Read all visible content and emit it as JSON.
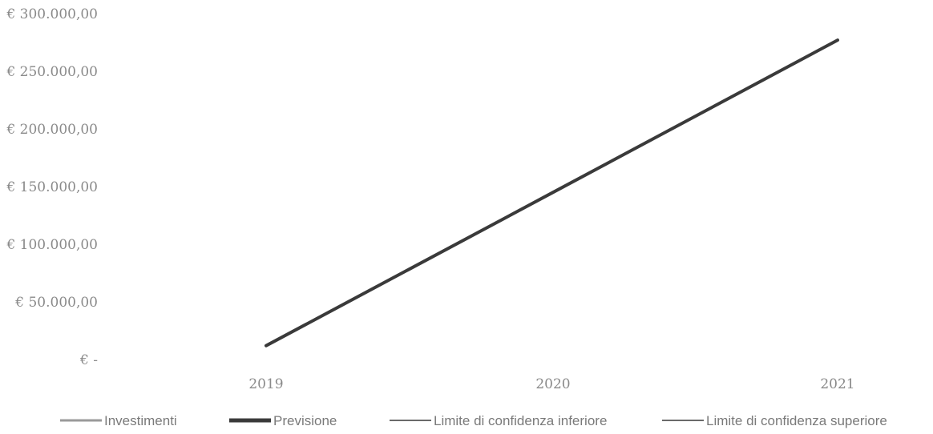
{
  "chart_data": {
    "type": "line",
    "x": [
      "2019",
      "2020",
      "2021"
    ],
    "ylim": [
      0,
      300000
    ],
    "y_ticks": [
      {
        "value": 0,
        "label": "€ -"
      },
      {
        "value": 50000,
        "label": "€ 50.000,00"
      },
      {
        "value": 100000,
        "label": "€ 100.000,00"
      },
      {
        "value": 150000,
        "label": "€ 150.000,00"
      },
      {
        "value": 200000,
        "label": "€ 200.000,00"
      },
      {
        "value": 250000,
        "label": "€ 250.000,00"
      },
      {
        "value": 300000,
        "label": "€ 300.000,00"
      }
    ],
    "grid": false,
    "legend_position": "bottom",
    "series": [
      {
        "name": "Investimenti",
        "color": "#9a9a9a",
        "values": [
          12000,
          145000,
          277000
        ]
      },
      {
        "name": "Previsione",
        "color": "#3a3a3a",
        "values": [
          12000,
          145000,
          277000
        ]
      },
      {
        "name": "Limite di confidenza inferiore",
        "color": "#6a6a6a",
        "values": [
          12000,
          145000,
          277000
        ]
      },
      {
        "name": "Limite di confidenza superiore",
        "color": "#6a6a6a",
        "values": [
          12000,
          145000,
          277000
        ]
      }
    ]
  }
}
